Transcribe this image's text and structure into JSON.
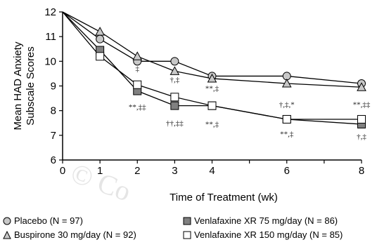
{
  "chart_data": {
    "type": "line",
    "ylabel": "Mean HAD Anxiety\nSubscale Scores",
    "xlabel": "Time of Treatment (wk)",
    "x": [
      0,
      1,
      2,
      3,
      4,
      6,
      8
    ],
    "xticks": [
      0,
      1,
      2,
      3,
      4,
      5,
      6,
      7,
      8
    ],
    "xtick_labels": [
      "0",
      "1",
      "2",
      "3",
      "4",
      "",
      "6",
      "",
      "8"
    ],
    "yticks": [
      6,
      7,
      8,
      9,
      10,
      11,
      12
    ],
    "xlim": [
      0,
      8
    ],
    "ylim": [
      6,
      12
    ],
    "grid": false,
    "legend_position": "bottom",
    "series": [
      {
        "name": "Placebo (N = 97)",
        "marker": "circle",
        "values": [
          12.0,
          10.9,
          10.0,
          10.0,
          9.4,
          9.4,
          9.1
        ]
      },
      {
        "name": "Buspirone 30 mg/day (N = 92)",
        "marker": "triangle",
        "values": [
          12.0,
          11.2,
          10.2,
          9.6,
          9.3,
          9.1,
          8.95
        ]
      },
      {
        "name": "Venlafaxine XR 75 mg/day (N = 86)",
        "marker": "square-filled",
        "values": [
          12.0,
          10.45,
          8.8,
          8.2,
          8.2,
          7.65,
          7.45
        ]
      },
      {
        "name": "Venlafaxine XR 150 mg/day (N = 85)",
        "marker": "square-open",
        "values": [
          12.0,
          10.2,
          9.05,
          8.55,
          8.2,
          7.65,
          7.65
        ]
      }
    ],
    "annotations": [
      {
        "text": "‡",
        "x": 2,
        "y": 9.6
      },
      {
        "text": "**,‡‡",
        "x": 2,
        "y": 8.05
      },
      {
        "text": "†,‡",
        "x": 3,
        "y": 9.15
      },
      {
        "text": "††,‡‡",
        "x": 3,
        "y": 7.4
      },
      {
        "text": "**,‡",
        "x": 4,
        "y": 8.8
      },
      {
        "text": "**,‡",
        "x": 4,
        "y": 7.35
      },
      {
        "text": "†,‡,*",
        "x": 6,
        "y": 8.15
      },
      {
        "text": "**,‡",
        "x": 6,
        "y": 6.95
      },
      {
        "text": "**,‡‡",
        "x": 8,
        "y": 8.15
      },
      {
        "text": "†,‡",
        "x": 8,
        "y": 6.85
      }
    ],
    "watermark": "© Co"
  },
  "legend": {
    "placebo": "Placebo (N = 97)",
    "buspirone": "Buspirone 30 mg/day (N = 92)",
    "venla75": "Venlafaxine XR 75 mg/day (N = 86)",
    "venla150": "Venlafaxine XR 150 mg/day (N = 85)"
  },
  "colors": {
    "line": "#000000",
    "placebo_fill": "#c8c8c8",
    "buspirone_fill": "#c8c8c8",
    "venla75_fill": "#808080",
    "venla150_fill": "#ffffff"
  }
}
